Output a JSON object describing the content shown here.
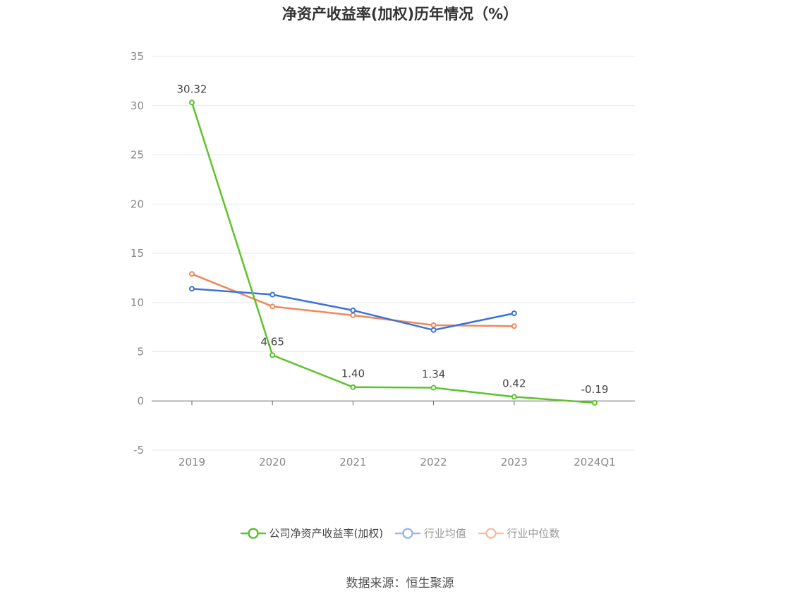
{
  "chart_data": {
    "type": "line",
    "title": "净资产收益率(加权)历年情况（%）",
    "categories": [
      "2019",
      "2020",
      "2021",
      "2022",
      "2023",
      "2024Q1"
    ],
    "ylim": [
      -5,
      35
    ],
    "yticks": [
      "-5",
      "0",
      "5",
      "10",
      "15",
      "20",
      "25",
      "30",
      "35"
    ],
    "grid": true,
    "legend_position": "bottom",
    "series": [
      {
        "name": "公司净资产收益率(加权)",
        "color": "#5ec22d",
        "values": [
          30.32,
          4.65,
          1.4,
          1.34,
          0.42,
          -0.19
        ],
        "labels": [
          "30.32",
          "4.65",
          "1.40",
          "1.34",
          "0.42",
          "-0.19"
        ]
      },
      {
        "name": "行业均值",
        "color": "#3b72d9",
        "legend_color": "#9fb8ea",
        "values": [
          11.4,
          10.8,
          9.2,
          7.2,
          8.9,
          null
        ]
      },
      {
        "name": "行业中位数",
        "color": "#f0885a",
        "legend_color": "#f6bfa5",
        "values": [
          12.9,
          9.6,
          8.7,
          7.7,
          7.6,
          null
        ]
      }
    ]
  },
  "source": "数据来源：恒生聚源"
}
